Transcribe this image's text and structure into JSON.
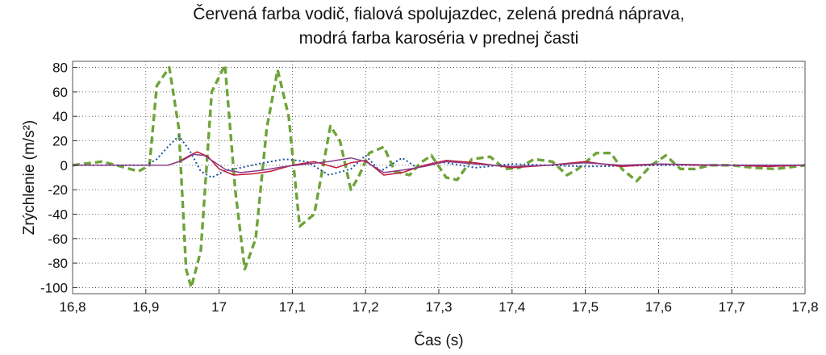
{
  "chart_data": {
    "type": "line",
    "title_lines": [
      "Červená farba vodič, fialová spolujazdec, zelená predná náprava,",
      "modrá farba karoséria v prednej časti"
    ],
    "xlabel": "Čas (s)",
    "ylabel": "Zrýchlenie (m/s²)",
    "xlim": [
      16.8,
      17.8
    ],
    "ylim": [
      -105,
      85
    ],
    "grid": true,
    "x_ticks": [
      16.8,
      16.9,
      17.0,
      17.1,
      17.2,
      17.3,
      17.4,
      17.5,
      17.6,
      17.7,
      17.8
    ],
    "x_tick_labels": [
      "16,8",
      "16,9",
      "17",
      "17,1",
      "17,2",
      "17,3",
      "17,4",
      "17,5",
      "17,6",
      "17,7",
      "17,8"
    ],
    "y_ticks": [
      80,
      60,
      40,
      20,
      0,
      -20,
      -40,
      -60,
      -80,
      -100
    ],
    "y_tick_labels": [
      "80",
      "60",
      "40",
      "20",
      "0",
      "-20",
      "-40",
      "-60",
      "-80",
      "-100"
    ],
    "series": [
      {
        "color": "#6fa33a",
        "dash": "dashed",
        "x": [
          16.8,
          16.84,
          16.86,
          16.89,
          16.905,
          16.915,
          16.932,
          16.945,
          16.955,
          16.962,
          16.975,
          16.99,
          17.008,
          17.022,
          17.035,
          17.05,
          17.065,
          17.08,
          17.095,
          17.11,
          17.13,
          17.152,
          17.165,
          17.18,
          17.19,
          17.205,
          17.225,
          17.24,
          17.26,
          17.275,
          17.29,
          17.31,
          17.325,
          17.345,
          17.37,
          17.39,
          17.41,
          17.43,
          17.455,
          17.475,
          17.49,
          17.515,
          17.535,
          17.55,
          17.57,
          17.59,
          17.61,
          17.63,
          17.65,
          17.67,
          17.7,
          17.73,
          17.76,
          17.8
        ],
        "y": [
          0,
          3,
          0,
          -5,
          0,
          65,
          80,
          30,
          -85,
          -100,
          -70,
          60,
          82,
          -20,
          -85,
          -60,
          30,
          78,
          40,
          -50,
          -40,
          32,
          20,
          -20,
          -10,
          10,
          15,
          -5,
          -8,
          2,
          8,
          -10,
          -12,
          5,
          7,
          -3,
          -2,
          5,
          3,
          -8,
          -3,
          10,
          10,
          -3,
          -13,
          0,
          8,
          -3,
          -3,
          0,
          0,
          -2,
          -3,
          0
        ]
      },
      {
        "color": "#1a4fa0",
        "dash": "dotted",
        "x": [
          16.8,
          16.9,
          16.915,
          16.93,
          16.945,
          16.96,
          16.975,
          16.99,
          17.01,
          17.03,
          17.06,
          17.09,
          17.12,
          17.15,
          17.18,
          17.2,
          17.22,
          17.25,
          17.27,
          17.3,
          17.35,
          17.4,
          17.5,
          17.6,
          17.8
        ],
        "y": [
          0,
          0,
          5,
          15,
          24,
          12,
          -5,
          -10,
          -4,
          -2,
          2,
          5,
          3,
          -8,
          -3,
          8,
          -5,
          6,
          -2,
          3,
          -2,
          1,
          -1,
          0,
          0
        ]
      },
      {
        "color": "#c0193a",
        "dash": "solid",
        "x": [
          16.8,
          16.93,
          16.945,
          16.96,
          16.97,
          16.985,
          17.0,
          17.02,
          17.045,
          17.07,
          17.1,
          17.13,
          17.16,
          17.18,
          17.2,
          17.225,
          17.25,
          17.28,
          17.31,
          17.35,
          17.4,
          17.45,
          17.5,
          17.55,
          17.6,
          17.65,
          17.7,
          17.75,
          17.8
        ],
        "y": [
          0,
          0,
          3,
          8,
          11,
          7,
          -3,
          -8,
          -7,
          -5,
          0,
          3,
          -2,
          2,
          4,
          -8,
          -6,
          0,
          4,
          2,
          -2,
          0,
          3,
          -1,
          1,
          0,
          0,
          -1,
          0
        ]
      },
      {
        "color": "#8a3d8a",
        "dash": "solid",
        "x": [
          16.8,
          16.93,
          16.95,
          16.965,
          16.98,
          16.995,
          17.01,
          17.03,
          17.06,
          17.09,
          17.12,
          17.15,
          17.18,
          17.2,
          17.225,
          17.25,
          17.28,
          17.31,
          17.35,
          17.4,
          17.45,
          17.5,
          17.55,
          17.6,
          17.7,
          17.8
        ],
        "y": [
          0,
          0,
          4,
          9,
          8,
          2,
          -4,
          -6,
          -4,
          -1,
          1,
          3,
          6,
          3,
          -6,
          -4,
          -1,
          3,
          1,
          -1,
          0,
          2,
          0,
          1,
          0,
          0
        ]
      }
    ]
  }
}
